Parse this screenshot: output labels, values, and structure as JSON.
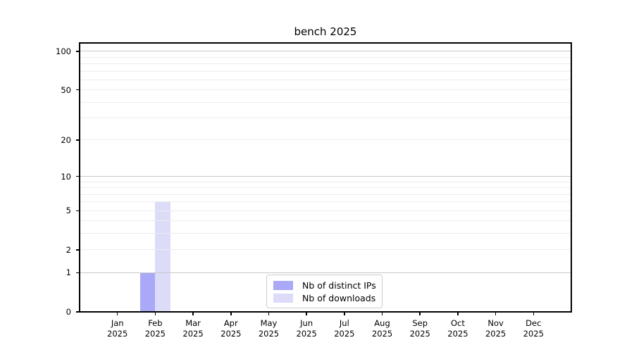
{
  "colors": {
    "background": "#ffffff",
    "spine": "#000000",
    "grid_major": "#c8c8c8",
    "grid_minor": "#ededed",
    "text": "#000000",
    "legend_border": "#cccccc"
  },
  "chart_data": {
    "type": "bar",
    "title": "bench 2025",
    "x": {
      "tick_labels": [
        [
          "Jan",
          "2025"
        ],
        [
          "Feb",
          "2025"
        ],
        [
          "Mar",
          "2025"
        ],
        [
          "Apr",
          "2025"
        ],
        [
          "May",
          "2025"
        ],
        [
          "Jun",
          "2025"
        ],
        [
          "Jul",
          "2025"
        ],
        [
          "Aug",
          "2025"
        ],
        [
          "Sep",
          "2025"
        ],
        [
          "Oct",
          "2025"
        ],
        [
          "Nov",
          "2025"
        ],
        [
          "Dec",
          "2025"
        ]
      ]
    },
    "y": {
      "scale": "log1p",
      "lim": [
        0,
        116
      ],
      "tick_values": [
        0,
        1,
        2,
        5,
        10,
        20,
        50,
        100
      ],
      "major_gridlines": [
        1,
        10,
        100
      ],
      "minor_gridlines": [
        2,
        3,
        4,
        5,
        6,
        7,
        8,
        9,
        20,
        30,
        40,
        50,
        60,
        70,
        80,
        90
      ]
    },
    "series": [
      {
        "name": "Nb of distinct IPs",
        "color": "#a9a9f7",
        "values": [
          0,
          1,
          0,
          0,
          0,
          0,
          0,
          0,
          0,
          0,
          0,
          0
        ]
      },
      {
        "name": "Nb of downloads",
        "color": "#dcdcf9",
        "values": [
          0,
          6,
          0,
          0,
          0,
          0,
          0,
          0,
          0,
          0,
          0,
          0
        ]
      }
    ],
    "legend_position": "bottom-center-inside",
    "grid": true,
    "grid_above_bars": true
  }
}
